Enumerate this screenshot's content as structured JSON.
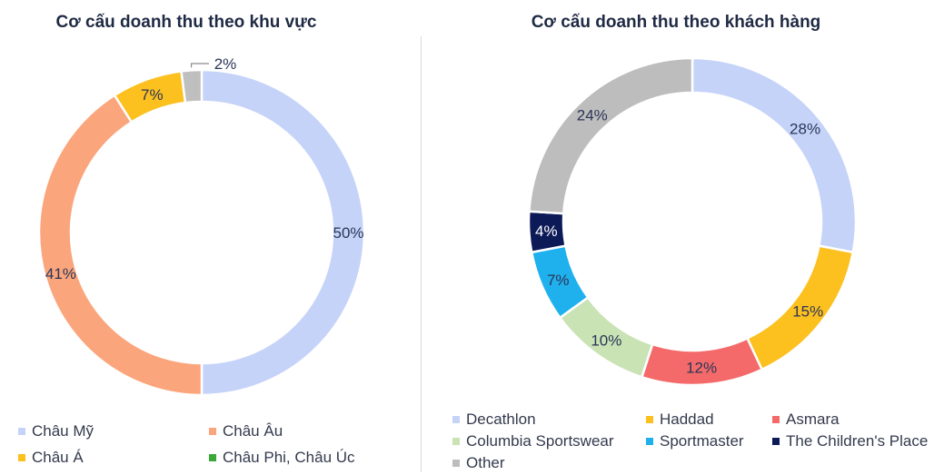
{
  "chart_data": [
    {
      "type": "pie",
      "title": "Cơ cấu doanh thu theo khu vực",
      "categories": [
        "Châu Mỹ",
        "Châu Âu",
        "Châu Á",
        "Châu Phi, Châu Úc"
      ],
      "values": [
        50,
        41,
        7,
        2
      ],
      "labels": [
        "50%",
        "41%",
        "7%",
        "2%"
      ],
      "colors": [
        "#c5d3f9",
        "#fba57c",
        "#fcc01f",
        "#bfbfbf"
      ],
      "legend_colors": [
        "#c5d3f9",
        "#fba57c",
        "#fcc01f",
        "#38a836"
      ],
      "legend_position": "bottom"
    },
    {
      "type": "pie",
      "title": "Cơ cấu doanh thu theo khách hàng",
      "categories": [
        "Decathlon",
        "Haddad",
        "Asmara",
        "Columbia Sportswear",
        "Sportmaster",
        "The Children's Place",
        "Other"
      ],
      "values": [
        28,
        15,
        12,
        10,
        7,
        4,
        24
      ],
      "labels": [
        "28%",
        "15%",
        "12%",
        "10%",
        "7%",
        "4%",
        "24%"
      ],
      "colors": [
        "#c5d3f9",
        "#fcc01f",
        "#f46a6a",
        "#c9e3b5",
        "#1fb0ee",
        "#0c1a57",
        "#bdbdbd"
      ],
      "legend_position": "bottom"
    }
  ]
}
